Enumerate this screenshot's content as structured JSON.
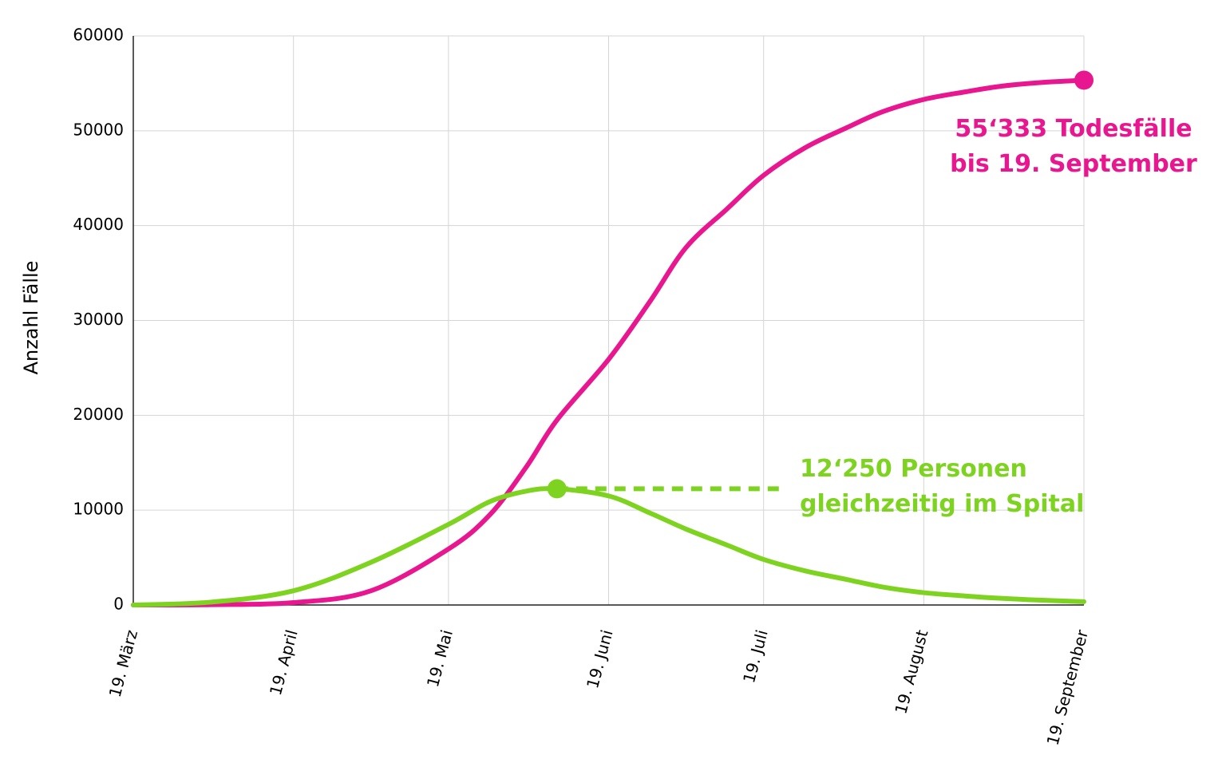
{
  "chart_data": {
    "type": "line",
    "y_label": "Anzahl Fälle",
    "x": [
      0,
      15,
      31,
      46,
      61,
      69,
      76,
      82,
      92,
      100,
      107,
      115,
      122,
      130,
      138,
      145,
      153,
      161,
      168,
      176,
      184
    ],
    "xlim": [
      0,
      184
    ],
    "xticks": [
      {
        "value": 0,
        "label": "19. März"
      },
      {
        "value": 31,
        "label": "19. April"
      },
      {
        "value": 61,
        "label": "19. Mai"
      },
      {
        "value": 92,
        "label": "19. Juni"
      },
      {
        "value": 122,
        "label": "19. Juli"
      },
      {
        "value": 153,
        "label": "19. August"
      },
      {
        "value": 184,
        "label": "19. September"
      }
    ],
    "ylim": [
      0,
      60000
    ],
    "yticks": [
      0,
      10000,
      20000,
      30000,
      40000,
      50000,
      60000
    ],
    "grid": true,
    "series": [
      {
        "name": "Todesfälle",
        "color": "#e8168f",
        "highlight": "last",
        "values": [
          0,
          30,
          250,
          1500,
          5900,
          9500,
          14500,
          19500,
          25900,
          32000,
          37700,
          41800,
          45300,
          48200,
          50300,
          52000,
          53300,
          54100,
          54700,
          55100,
          55333
        ],
        "annotation": [
          "55‘333 Todesfälle",
          "bis 19. September"
        ]
      },
      {
        "name": "Personen im Spital",
        "color": "#7ed321",
        "highlight": "max",
        "values": [
          0,
          300,
          1500,
          4500,
          8500,
          10900,
          12000,
          12250,
          11500,
          9700,
          8000,
          6300,
          4800,
          3600,
          2700,
          1900,
          1300,
          950,
          700,
          500,
          350
        ],
        "annotation": [
          "12‘250 Personen",
          "gleichzeitig im Spital"
        ]
      }
    ]
  }
}
